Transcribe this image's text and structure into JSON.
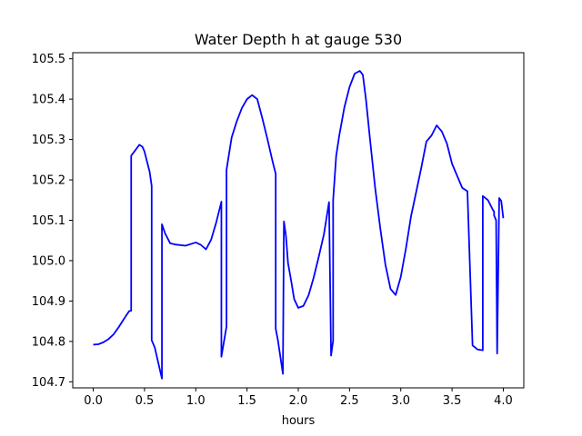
{
  "chart_data": {
    "type": "line",
    "title": "Water Depth h at gauge 530",
    "xlabel": "hours",
    "ylabel": "",
    "xlim": [
      -0.2,
      4.2
    ],
    "ylim": [
      104.685,
      105.515
    ],
    "xticks": [
      0.0,
      0.5,
      1.0,
      1.5,
      2.0,
      2.5,
      3.0,
      3.5,
      4.0
    ],
    "xtick_labels": [
      "0.0",
      "0.5",
      "1.0",
      "1.5",
      "2.0",
      "2.5",
      "3.0",
      "3.5",
      "4.0"
    ],
    "yticks": [
      104.7,
      104.8,
      104.9,
      105.0,
      105.1,
      105.2,
      105.3,
      105.4,
      105.5
    ],
    "ytick_labels": [
      "104.7",
      "104.8",
      "104.9",
      "105.0",
      "105.1",
      "105.2",
      "105.3",
      "105.4",
      "105.5"
    ],
    "grid": false,
    "series": [
      {
        "color": "#0000ff",
        "x": [
          0.0,
          0.05,
          0.1,
          0.15,
          0.2,
          0.25,
          0.3,
          0.35,
          0.37,
          0.37,
          0.4,
          0.45,
          0.48,
          0.5,
          0.55,
          0.57,
          0.57,
          0.6,
          0.67,
          0.67,
          0.7,
          0.75,
          0.8,
          0.9,
          1.0,
          1.05,
          1.1,
          1.15,
          1.2,
          1.25,
          1.25,
          1.3,
          1.3,
          1.35,
          1.4,
          1.45,
          1.5,
          1.55,
          1.6,
          1.65,
          1.7,
          1.75,
          1.78,
          1.78,
          1.8,
          1.85,
          1.86,
          1.86,
          1.88,
          1.9,
          1.93,
          1.96,
          2.0,
          2.05,
          2.1,
          2.15,
          2.2,
          2.25,
          2.3,
          2.32,
          2.32,
          2.34,
          2.34,
          2.37,
          2.4,
          2.45,
          2.5,
          2.55,
          2.6,
          2.63,
          2.66,
          2.7,
          2.75,
          2.8,
          2.85,
          2.9,
          2.95,
          3.0,
          3.05,
          3.1,
          3.15,
          3.2,
          3.25,
          3.3,
          3.35,
          3.4,
          3.45,
          3.5,
          3.55,
          3.6,
          3.65,
          3.7,
          3.75,
          3.8,
          3.8,
          3.85,
          3.9,
          3.91,
          3.91,
          3.93,
          3.94,
          3.96,
          3.98,
          4.0
        ],
        "y": [
          104.792,
          104.793,
          104.798,
          104.806,
          104.818,
          104.836,
          104.856,
          104.875,
          104.876,
          105.26,
          105.27,
          105.287,
          105.282,
          105.27,
          105.22,
          105.185,
          104.803,
          104.785,
          104.708,
          105.09,
          105.068,
          105.043,
          105.04,
          105.037,
          105.045,
          105.039,
          105.028,
          105.052,
          105.095,
          105.146,
          104.762,
          104.837,
          105.225,
          105.305,
          105.345,
          105.378,
          105.4,
          105.41,
          105.4,
          105.352,
          105.3,
          105.245,
          105.215,
          104.831,
          104.805,
          104.72,
          105.097,
          105.097,
          105.061,
          104.994,
          104.951,
          104.905,
          104.883,
          104.888,
          104.914,
          104.958,
          105.01,
          105.065,
          105.145,
          104.765,
          104.765,
          104.802,
          105.15,
          105.26,
          105.31,
          105.38,
          105.43,
          105.463,
          105.47,
          105.46,
          105.4,
          105.3,
          105.18,
          105.08,
          104.99,
          104.93,
          104.915,
          104.96,
          105.03,
          105.11,
          105.17,
          105.23,
          105.295,
          105.31,
          105.335,
          105.32,
          105.29,
          105.24,
          105.21,
          105.18,
          105.172,
          104.79,
          104.78,
          104.778,
          105.16,
          105.15,
          105.125,
          105.122,
          105.112,
          105.1,
          104.77,
          105.155,
          105.148,
          105.105
        ]
      }
    ]
  }
}
